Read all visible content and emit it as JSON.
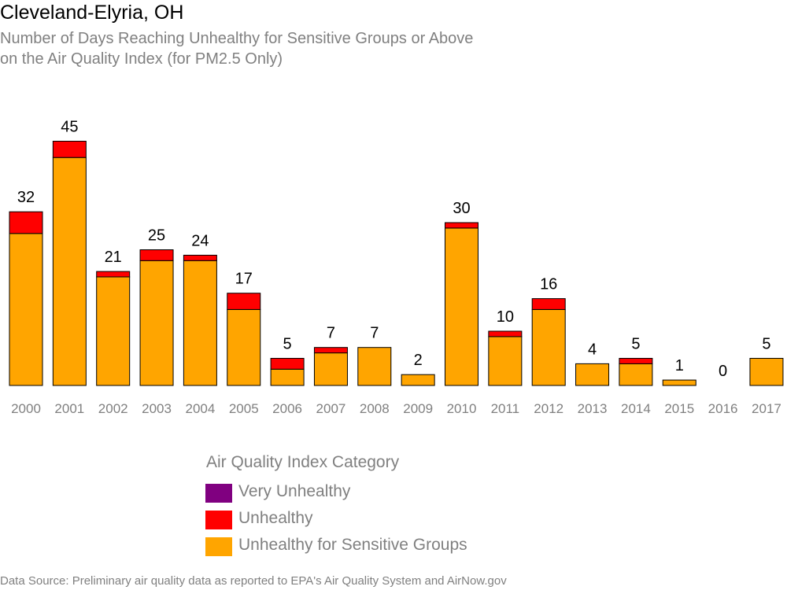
{
  "header": {
    "title": "Cleveland-Elyria, OH",
    "subtitle_line1": "Number of Days Reaching Unhealthy for Sensitive Groups or Above",
    "subtitle_line2": "on the Air Quality Index (for PM2.5 Only)"
  },
  "legend": {
    "title": "Air Quality Index Category",
    "items": [
      {
        "label": "Very Unhealthy",
        "color": "#800080"
      },
      {
        "label": "Unhealthy",
        "color": "#ff0000"
      },
      {
        "label": "Unhealthy for Sensitive Groups",
        "color": "#ffa500"
      }
    ]
  },
  "source": "Data Source: Preliminary air quality data as reported to EPA's Air Quality System and AirNow.gov",
  "chart_data": {
    "type": "bar",
    "stacked": true,
    "categories": [
      "2000",
      "2001",
      "2002",
      "2003",
      "2004",
      "2005",
      "2006",
      "2007",
      "2008",
      "2009",
      "2010",
      "2011",
      "2012",
      "2013",
      "2014",
      "2015",
      "2016",
      "2017"
    ],
    "series": [
      {
        "name": "Unhealthy for Sensitive Groups",
        "color": "#ffa500",
        "values": [
          28,
          42,
          20,
          23,
          23,
          14,
          3,
          6,
          7,
          2,
          29,
          9,
          14,
          4,
          4,
          1,
          0,
          5
        ]
      },
      {
        "name": "Unhealthy",
        "color": "#ff0000",
        "values": [
          4,
          3,
          1,
          2,
          1,
          3,
          2,
          1,
          0,
          0,
          1,
          1,
          2,
          0,
          1,
          0,
          0,
          0
        ]
      },
      {
        "name": "Very Unhealthy",
        "color": "#800080",
        "values": [
          0,
          0,
          0,
          0,
          0,
          0,
          0,
          0,
          0,
          0,
          0,
          0,
          0,
          0,
          0,
          0,
          0,
          0
        ]
      }
    ],
    "totals": [
      32,
      45,
      21,
      25,
      24,
      17,
      5,
      7,
      7,
      2,
      30,
      10,
      16,
      4,
      5,
      1,
      0,
      5
    ],
    "ylim": [
      0,
      45
    ],
    "grid": false,
    "legend_position": "bottom"
  }
}
